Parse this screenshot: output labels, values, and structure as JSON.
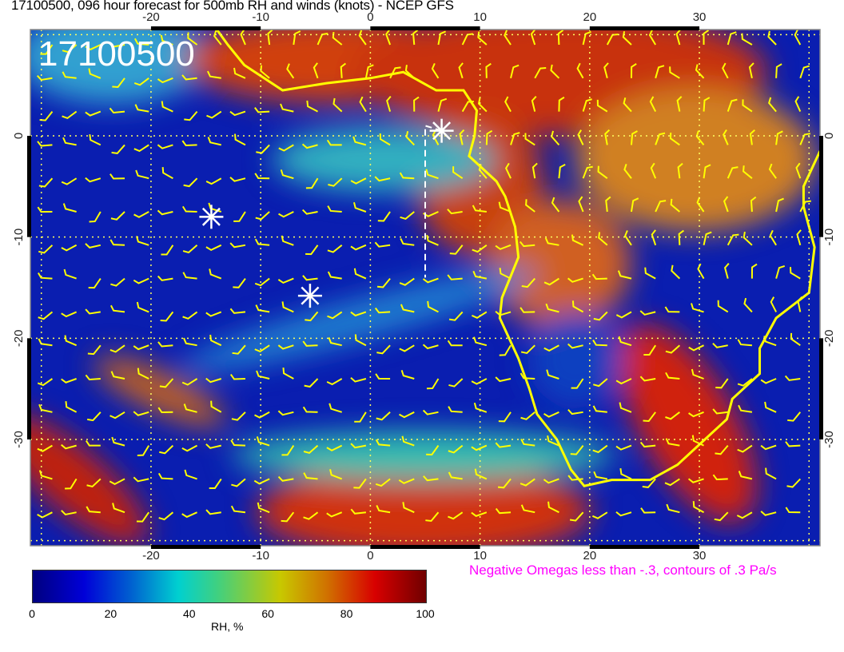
{
  "title": "17100500, 096 hour forecast for 500mb RH and winds (knots) - NCEP GFS",
  "stamp": "17100500",
  "map": {
    "lon_ticks": [
      "-20",
      "-10",
      "0",
      "10",
      "20",
      "30"
    ],
    "lat_ticks": [
      "0",
      "-10",
      "-20",
      "-30"
    ],
    "lon_range": [
      -31,
      41
    ],
    "lat_range": [
      -40.5,
      10.5
    ],
    "coastline_color": "#ffff00",
    "wind_barb_color": "#ffff00",
    "omega_contour_color": "#ff00ff",
    "markers": [
      {
        "type": "star",
        "lon": 6.5,
        "lat": 0.5
      },
      {
        "type": "star",
        "lon": -14.5,
        "lat": -8
      },
      {
        "type": "star",
        "lon": -5.5,
        "lat": -15.8
      }
    ]
  },
  "omega_note": "Negative Omegas less than -.3, contours of .3 Pa/s",
  "colorbar": {
    "ticks": [
      "0",
      "20",
      "40",
      "60",
      "80",
      "100"
    ],
    "label": "RH, %",
    "range": [
      0,
      100
    ]
  }
}
